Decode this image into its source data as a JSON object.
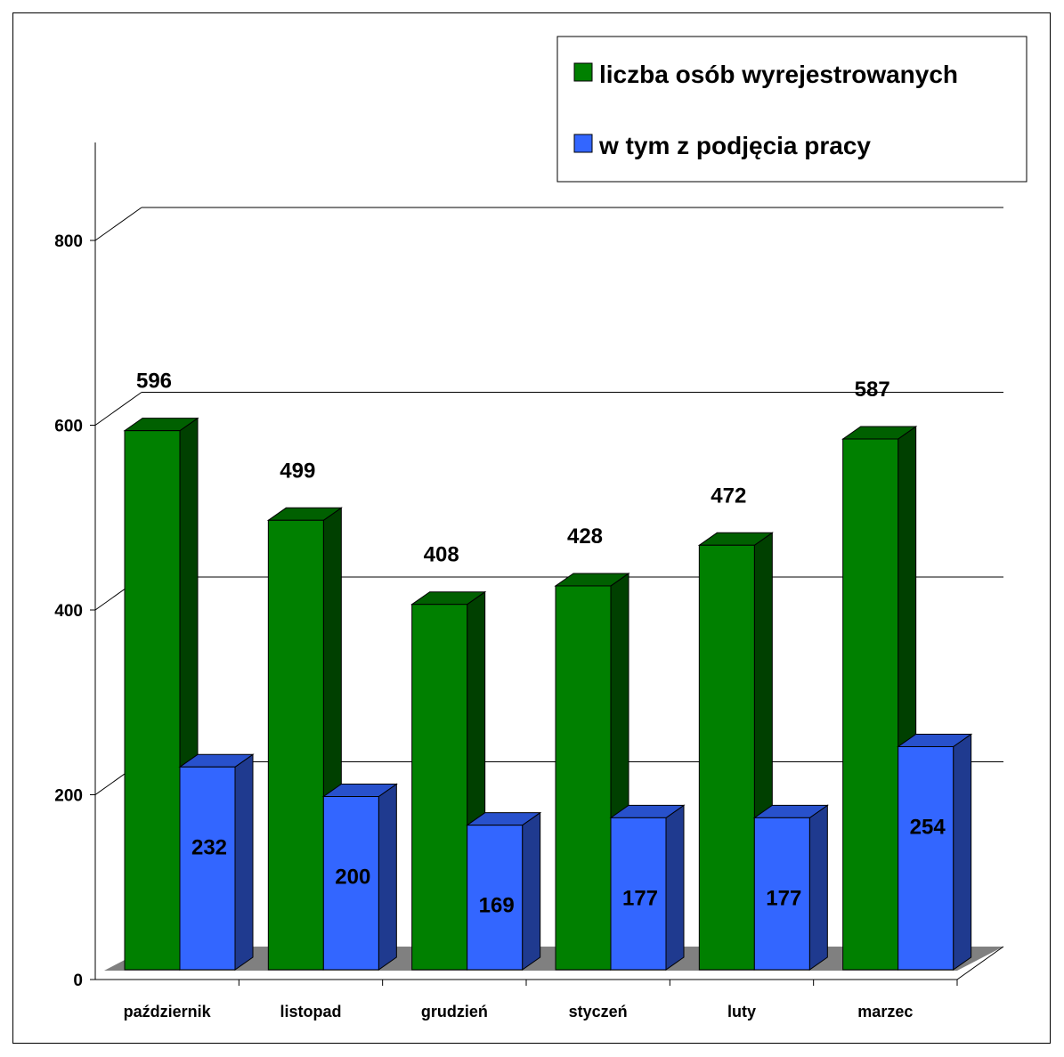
{
  "chart_data": {
    "type": "bar",
    "categories": [
      "październik",
      "listopad",
      "grudzień",
      "styczeń",
      "luty",
      "marzec"
    ],
    "series": [
      {
        "name": "liczba osób wyrejestrowanych",
        "values": [
          596,
          499,
          408,
          428,
          472,
          587
        ]
      },
      {
        "name": "w tym z podjęcia pracy",
        "values": [
          232,
          200,
          169,
          177,
          177,
          254
        ]
      }
    ],
    "y_ticks": [
      "0",
      "200",
      "400",
      "600",
      "800"
    ],
    "ylim": [
      0,
      800
    ],
    "grid": true,
    "legend_position": "top-right",
    "style": "3d-clustered-column"
  },
  "colors": {
    "series1_front": "#008000",
    "series1_side": "#004000",
    "series1_top": "#006000",
    "series2_front": "#3366FF",
    "series2_side": "#1F3A8F",
    "series2_top": "#2851CC",
    "floor": "#808080"
  }
}
